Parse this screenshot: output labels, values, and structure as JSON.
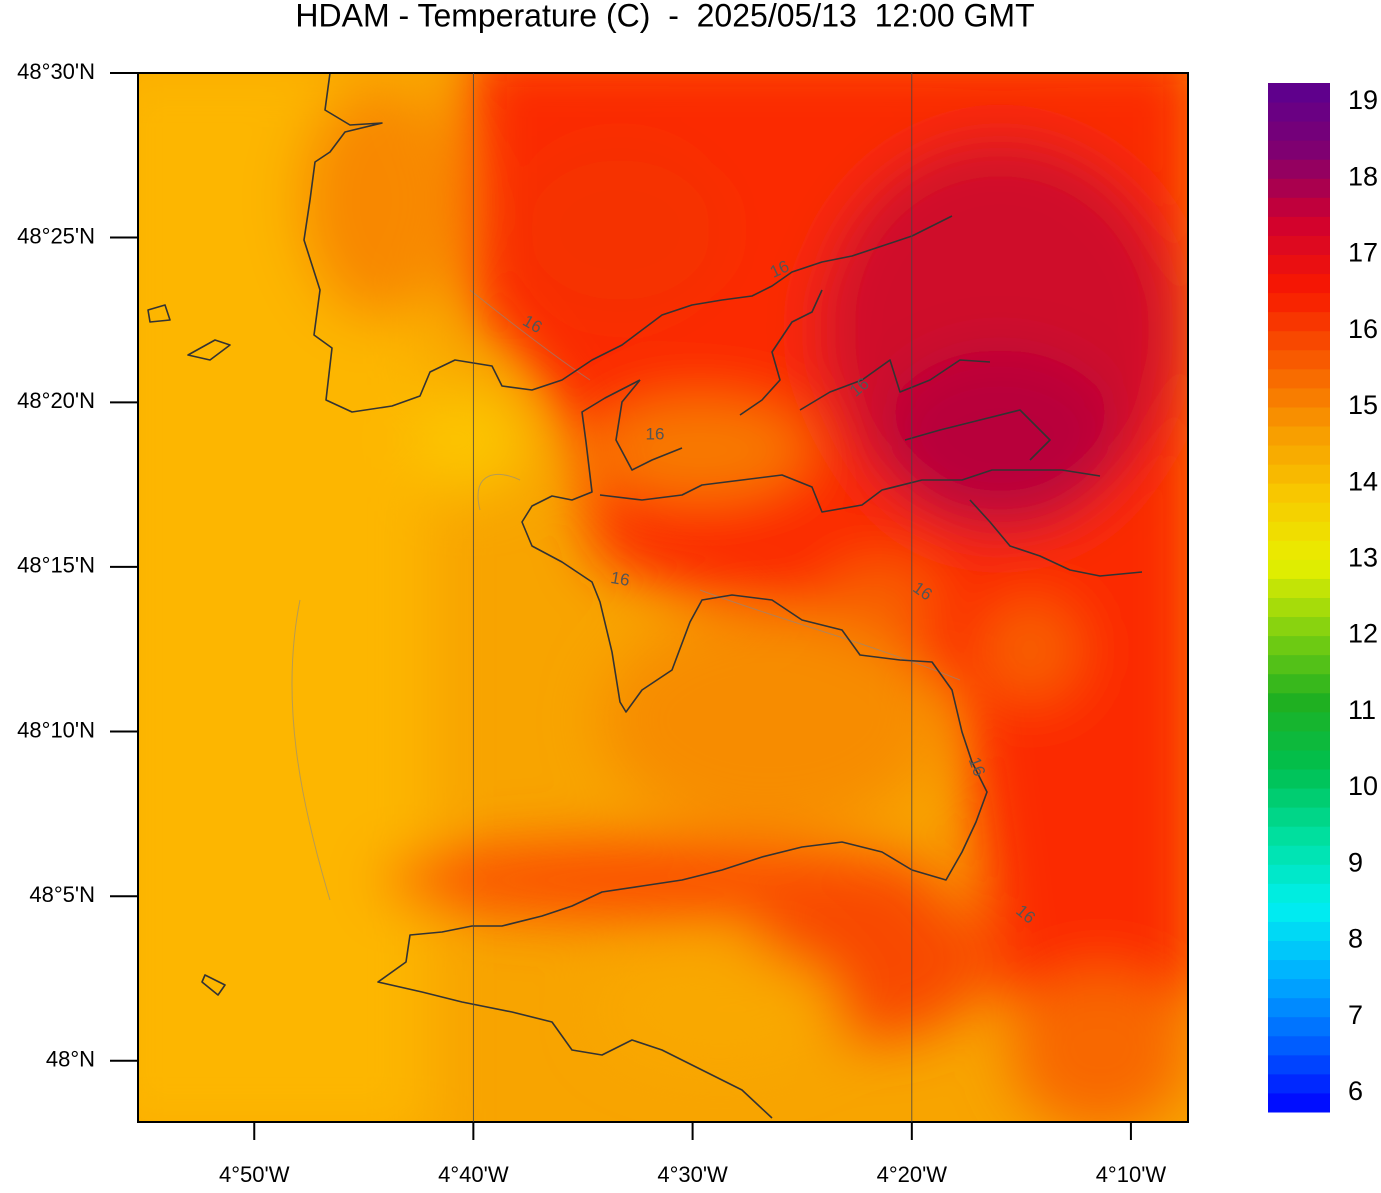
{
  "title": "HDAM - Temperature (C)  -  2025/05/13  12:00 GMT",
  "map": {
    "xlim": [
      -4.9217,
      -4.1233
    ],
    "ylim": [
      47.969,
      48.5
    ],
    "xticks": [
      {
        "value": -4.8333,
        "label": "4°50'W"
      },
      {
        "value": -4.6667,
        "label": "4°40'W"
      },
      {
        "value": -4.5,
        "label": "4°30'W"
      },
      {
        "value": -4.3333,
        "label": "4°20'W"
      },
      {
        "value": -4.1667,
        "label": "4°10'W"
      }
    ],
    "yticks": [
      {
        "value": 48.5,
        "label": "48°30'N"
      },
      {
        "value": 48.4167,
        "label": "48°25'N"
      },
      {
        "value": 48.3333,
        "label": "48°20'N"
      },
      {
        "value": 48.25,
        "label": "48°15'N"
      },
      {
        "value": 48.1667,
        "label": "48°10'N"
      },
      {
        "value": 48.0833,
        "label": "48°5'N"
      },
      {
        "value": 48,
        "label": "48°N"
      }
    ],
    "contour_labels": [
      16,
      16,
      16,
      16,
      16,
      16,
      16,
      16
    ]
  },
  "colorbar": {
    "lim": [
      5.75,
      19.25
    ],
    "ticks": [
      6,
      7,
      8,
      9,
      10,
      11,
      12,
      13,
      14,
      15,
      16,
      17,
      18,
      19
    ],
    "colors": [
      "#0000ff",
      "#0060ff",
      "#00b0ff",
      "#00f0f0",
      "#00e0a0",
      "#00c050",
      "#20b020",
      "#80d010",
      "#e8f000",
      "#f8c800",
      "#f89800",
      "#f85800",
      "#f81800",
      "#d00030",
      "#800070",
      "#5a0090"
    ]
  }
}
